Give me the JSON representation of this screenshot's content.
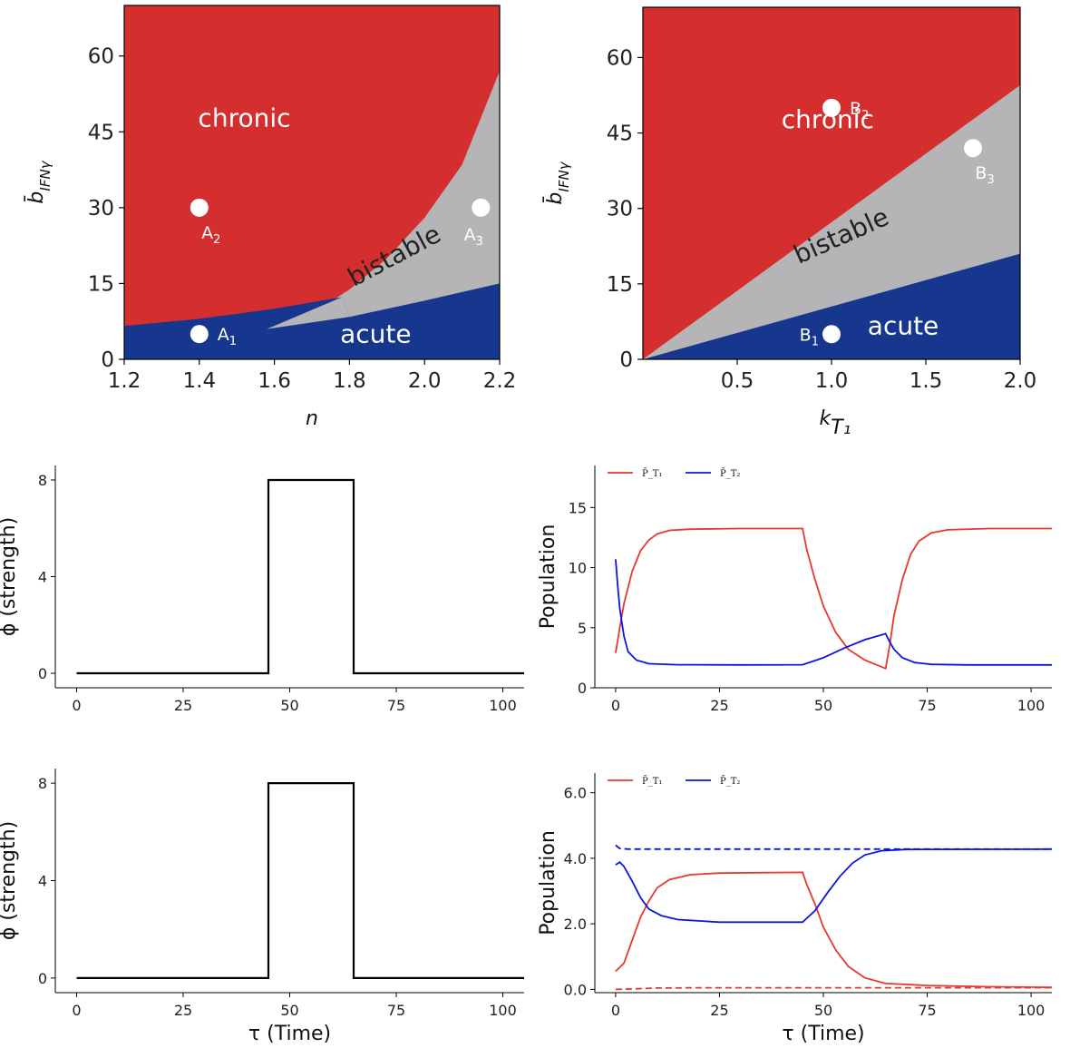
{
  "colors": {
    "chronic": "#d42e2e",
    "bistable": "#b5b5b8",
    "acute": "#17378f",
    "red_line": "#e8372f",
    "blue_line": "#0a16e0",
    "black": "#000000"
  },
  "chart_data": [
    {
      "id": "phase-n",
      "type": "area",
      "xlabel": "n",
      "ylabel": "b̄",
      "ylabel_sub": "IFNγ",
      "xlim": [
        1.2,
        2.2
      ],
      "ylim": [
        0,
        70
      ],
      "xticks": [
        "1.2",
        "1.4",
        "1.6",
        "1.8",
        "2.0",
        "2.2"
      ],
      "yticks": [
        "0",
        "15",
        "30",
        "45",
        "60"
      ],
      "regions": [
        {
          "name": "chronic",
          "label": "chronic",
          "label_at": [
            1.52,
            46
          ]
        },
        {
          "name": "bistable",
          "label": "bistable",
          "label_at": [
            1.93,
            19
          ]
        },
        {
          "name": "acute",
          "label": "acute",
          "label_at": [
            1.87,
            3.3
          ]
        }
      ],
      "boundaries": {
        "acute_top": [
          [
            1.2,
            6.6
          ],
          [
            1.4,
            8.0
          ],
          [
            1.6,
            10.0
          ],
          [
            1.78,
            12.3
          ]
        ],
        "acute_top_continued": [
          [
            1.58,
            6.0
          ],
          [
            1.8,
            8.4
          ],
          [
            2.0,
            11.6
          ],
          [
            2.2,
            15.0
          ]
        ],
        "chronic_bottom": [
          [
            1.58,
            6.0
          ],
          [
            1.7,
            9.0
          ],
          [
            1.8,
            13.8
          ],
          [
            1.9,
            20.0
          ],
          [
            2.0,
            28.0
          ],
          [
            2.1,
            38.5
          ],
          [
            2.2,
            57.0
          ]
        ]
      },
      "points": [
        {
          "x": 1.4,
          "y": 5,
          "label": "A",
          "sub": "1",
          "label_pos": "right"
        },
        {
          "x": 1.4,
          "y": 30,
          "label": "A",
          "sub": "2",
          "label_pos": "below"
        },
        {
          "x": 2.15,
          "y": 30,
          "label": "A",
          "sub": "3",
          "label_pos": "below-left"
        }
      ]
    },
    {
      "id": "phase-k",
      "type": "area",
      "xlabel": "k",
      "xlabel_sub": "T₁",
      "ylabel": "b̄",
      "ylabel_sub": "IFNγ",
      "xlim": [
        0,
        2.0
      ],
      "ylim": [
        0,
        70
      ],
      "xticks": [
        "0.5",
        "1.0",
        "1.5",
        "2.0"
      ],
      "yticks": [
        "0",
        "15",
        "30",
        "45",
        "60"
      ],
      "regions": [
        {
          "name": "chronic",
          "label": "chronic",
          "label_at": [
            0.98,
            46
          ]
        },
        {
          "name": "bistable",
          "label": "bistable",
          "label_at": [
            1.07,
            23
          ]
        },
        {
          "name": "acute",
          "label": "acute",
          "label_at": [
            1.38,
            5
          ]
        }
      ],
      "boundaries": {
        "chronic_bottom": [
          [
            0.0,
            0.0
          ],
          [
            2.0,
            54.5
          ]
        ],
        "acute_top": [
          [
            0.0,
            0.0
          ],
          [
            2.0,
            21.0
          ]
        ]
      },
      "points": [
        {
          "x": 1.0,
          "y": 5,
          "label": "B",
          "sub": "1",
          "label_pos": "left"
        },
        {
          "x": 1.0,
          "y": 50,
          "label": "B",
          "sub": "2",
          "label_pos": "right"
        },
        {
          "x": 1.75,
          "y": 42,
          "label": "B",
          "sub": "3",
          "label_pos": "below"
        }
      ]
    },
    {
      "id": "phi-1",
      "type": "line",
      "xlabel": "",
      "ylabel": "ϕ (strength)",
      "xlim": [
        -5,
        105
      ],
      "ylim": [
        -0.6,
        8.6
      ],
      "xticks": [
        "0",
        "25",
        "50",
        "75",
        "100"
      ],
      "yticks": [
        "0",
        "4",
        "8"
      ],
      "series": [
        {
          "color": "black",
          "dashed": false,
          "points": [
            [
              0,
              0
            ],
            [
              45,
              0
            ],
            [
              45,
              8
            ],
            [
              65,
              8
            ],
            [
              65,
              0
            ],
            [
              105,
              0
            ]
          ]
        }
      ]
    },
    {
      "id": "pop-1",
      "type": "line",
      "xlabel": "",
      "ylabel": "Population",
      "xlim": [
        -5,
        105
      ],
      "ylim": [
        0,
        18.5
      ],
      "xticks": [
        "0",
        "25",
        "50",
        "75",
        "100"
      ],
      "yticks": [
        "0",
        "5",
        "10",
        "15"
      ],
      "legend": [
        "P̄_T₁",
        "P̄_T₂"
      ],
      "series": [
        {
          "color": "red_line",
          "dashed": false,
          "points": [
            [
              0,
              2.9
            ],
            [
              1,
              5.0
            ],
            [
              2,
              7.0
            ],
            [
              4,
              9.7
            ],
            [
              6,
              11.4
            ],
            [
              8,
              12.3
            ],
            [
              10,
              12.8
            ],
            [
              13,
              13.1
            ],
            [
              18,
              13.2
            ],
            [
              30,
              13.25
            ],
            [
              45,
              13.25
            ],
            [
              46,
              11.5
            ],
            [
              48,
              9.0
            ],
            [
              50,
              6.8
            ],
            [
              53,
              4.6
            ],
            [
              56,
              3.2
            ],
            [
              60,
              2.3
            ],
            [
              65,
              1.6
            ],
            [
              66,
              3.6
            ],
            [
              67,
              6.0
            ],
            [
              69,
              9.0
            ],
            [
              71,
              11.1
            ],
            [
              73,
              12.2
            ],
            [
              76,
              12.9
            ],
            [
              80,
              13.15
            ],
            [
              90,
              13.25
            ],
            [
              105,
              13.25
            ]
          ]
        },
        {
          "color": "blue_line",
          "dashed": false,
          "points": [
            [
              0,
              10.7
            ],
            [
              0.5,
              8.5
            ],
            [
              1,
              6.6
            ],
            [
              2,
              4.3
            ],
            [
              3,
              3.0
            ],
            [
              5,
              2.3
            ],
            [
              8,
              2.0
            ],
            [
              15,
              1.92
            ],
            [
              30,
              1.9
            ],
            [
              45,
              1.92
            ],
            [
              50,
              2.5
            ],
            [
              55,
              3.3
            ],
            [
              60,
              4.0
            ],
            [
              65,
              4.5
            ],
            [
              66,
              3.8
            ],
            [
              67,
              3.2
            ],
            [
              69,
              2.5
            ],
            [
              72,
              2.1
            ],
            [
              76,
              1.95
            ],
            [
              85,
              1.9
            ],
            [
              105,
              1.9
            ]
          ]
        }
      ]
    },
    {
      "id": "phi-2",
      "type": "line",
      "xlabel": "τ (Time)",
      "ylabel": "ϕ (strength)",
      "xlim": [
        -5,
        105
      ],
      "ylim": [
        -0.6,
        8.6
      ],
      "xticks": [
        "0",
        "25",
        "50",
        "75",
        "100"
      ],
      "yticks": [
        "0",
        "4",
        "8"
      ],
      "series": [
        {
          "color": "black",
          "dashed": false,
          "points": [
            [
              0,
              0
            ],
            [
              45,
              0
            ],
            [
              45,
              8
            ],
            [
              65,
              8
            ],
            [
              65,
              0
            ],
            [
              105,
              0
            ]
          ]
        }
      ]
    },
    {
      "id": "pop-2",
      "type": "line",
      "xlabel": "τ (Time)",
      "ylabel": "Population",
      "xlim": [
        -5,
        105
      ],
      "ylim": [
        -0.1,
        6.6
      ],
      "xticks": [
        "0",
        "25",
        "50",
        "75",
        "100"
      ],
      "yticks": [
        "0.0",
        "2.0",
        "4.0",
        "6.0"
      ],
      "legend": [
        "P̄_T₁",
        "P̄_T₂"
      ],
      "series": [
        {
          "color": "red_line",
          "dashed": false,
          "points": [
            [
              0,
              0.55
            ],
            [
              2,
              0.8
            ],
            [
              4,
              1.5
            ],
            [
              6,
              2.2
            ],
            [
              8,
              2.7
            ],
            [
              10,
              3.1
            ],
            [
              13,
              3.35
            ],
            [
              18,
              3.5
            ],
            [
              25,
              3.55
            ],
            [
              45,
              3.57
            ],
            [
              46,
              3.2
            ],
            [
              48,
              2.6
            ],
            [
              50,
              1.9
            ],
            [
              53,
              1.2
            ],
            [
              56,
              0.7
            ],
            [
              60,
              0.35
            ],
            [
              65,
              0.18
            ],
            [
              75,
              0.12
            ],
            [
              90,
              0.08
            ],
            [
              105,
              0.06
            ]
          ]
        },
        {
          "color": "red_line",
          "dashed": true,
          "points": [
            [
              0,
              0.0
            ],
            [
              5,
              0.02
            ],
            [
              10,
              0.04
            ],
            [
              20,
              0.05
            ],
            [
              105,
              0.05
            ]
          ]
        },
        {
          "color": "blue_line",
          "dashed": false,
          "points": [
            [
              0,
              3.8
            ],
            [
              1,
              3.88
            ],
            [
              2,
              3.75
            ],
            [
              4,
              3.3
            ],
            [
              6,
              2.8
            ],
            [
              8,
              2.45
            ],
            [
              11,
              2.25
            ],
            [
              15,
              2.13
            ],
            [
              25,
              2.05
            ],
            [
              45,
              2.05
            ],
            [
              48,
              2.4
            ],
            [
              51,
              2.95
            ],
            [
              54,
              3.45
            ],
            [
              57,
              3.85
            ],
            [
              60,
              4.1
            ],
            [
              64,
              4.23
            ],
            [
              70,
              4.27
            ],
            [
              105,
              4.28
            ]
          ]
        },
        {
          "color": "blue_line",
          "dashed": true,
          "points": [
            [
              0,
              4.4
            ],
            [
              1,
              4.3
            ],
            [
              3,
              4.28
            ],
            [
              105,
              4.28
            ]
          ]
        }
      ]
    }
  ]
}
